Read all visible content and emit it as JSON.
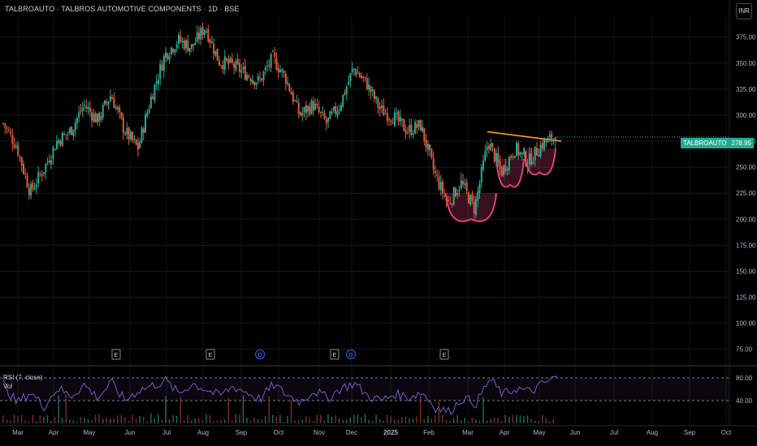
{
  "header": {
    "title": "TALBROAUTO · TALBROS AUTOMOTIVE COMPONENTS · 1D · BSE",
    "currency": "INR"
  },
  "price_tag": {
    "symbol": "TALBROAUTO",
    "value": "278.95"
  },
  "rsi_panel": {
    "label": "RSI (7, close)",
    "vol_label": "Vol",
    "ticks": [
      "80.00",
      "40.00"
    ]
  },
  "colors": {
    "background": "#000000",
    "up": "#22ab94",
    "down": "#e05a3c",
    "rsi_line": "#7e57c2",
    "pattern": "#e0407a",
    "resistance": "#f7a21b",
    "price_tag": "#22ab94"
  },
  "chart_data": {
    "type": "candlestick",
    "symbol": "TALBROAUTO",
    "timeframe": "1D",
    "exchange": "BSE",
    "last_price": 278.95,
    "x_ticks": [
      "Mar",
      "Apr",
      "May",
      "Jun",
      "Jul",
      "Aug",
      "Sep",
      "Oct",
      "Nov",
      "Dec",
      "2025",
      "Feb",
      "Mar",
      "Apr",
      "May",
      "Jun",
      "Jul",
      "Aug",
      "Sep",
      "Oct"
    ],
    "y_ticks": [
      "375.00",
      "350.00",
      "325.00",
      "300.00",
      "275.00",
      "250.00",
      "225.00",
      "200.00",
      "175.00",
      "150.00",
      "125.00",
      "100.00",
      "75.00"
    ],
    "ylim": [
      60,
      395
    ],
    "event_markers": [
      {
        "label": "E",
        "month": "May"
      },
      {
        "label": "E",
        "month": "Aug"
      },
      {
        "label": "D",
        "month": "Sep"
      },
      {
        "label": "E",
        "month": "Nov"
      },
      {
        "label": "D",
        "month": "Dec"
      },
      {
        "label": "E",
        "month": "Feb"
      }
    ],
    "price_path": [
      [
        "Mar",
        292
      ],
      [
        "Mar",
        270
      ],
      [
        "Mar",
        226
      ],
      [
        "Apr",
        248
      ],
      [
        "Apr",
        275
      ],
      [
        "May",
        285
      ],
      [
        "May",
        310
      ],
      [
        "May",
        295
      ],
      [
        "Jun",
        320
      ],
      [
        "Jun",
        285
      ],
      [
        "Jun",
        268
      ],
      [
        "Jul",
        318
      ],
      [
        "Jul",
        358
      ],
      [
        "Jul",
        372
      ],
      [
        "Aug",
        365
      ],
      [
        "Aug",
        385
      ],
      [
        "Aug",
        352
      ],
      [
        "Sep",
        348
      ],
      [
        "Sep",
        340
      ],
      [
        "Sep",
        332
      ],
      [
        "Oct",
        355
      ],
      [
        "Oct",
        335
      ],
      [
        "Oct",
        300
      ],
      [
        "Nov",
        310
      ],
      [
        "Nov",
        292
      ],
      [
        "Dec",
        310
      ],
      [
        "Dec",
        345
      ],
      [
        "Dec",
        330
      ],
      [
        "2025",
        305
      ],
      [
        "2025",
        298
      ],
      [
        "Feb",
        285
      ],
      [
        "Feb",
        290
      ],
      [
        "Feb",
        245
      ],
      [
        "Mar",
        215
      ],
      [
        "Mar",
        235
      ],
      [
        "Mar",
        210
      ],
      [
        "Apr",
        275
      ],
      [
        "Apr",
        245
      ],
      [
        "Apr",
        268
      ],
      [
        "May",
        255
      ],
      [
        "May",
        272
      ],
      [
        "May",
        279
      ]
    ],
    "annotations": [
      {
        "type": "cup",
        "from": "Mar",
        "to": "Apr",
        "low": 200
      },
      {
        "type": "cup",
        "from": "Apr",
        "to": "Apr",
        "low": 233
      },
      {
        "type": "cup",
        "from": "Apr",
        "to": "May",
        "low": 245
      },
      {
        "type": "resistance_line",
        "from_price": 284,
        "to_price": 275
      }
    ],
    "rsi": {
      "period": 7,
      "ylim": [
        0,
        100
      ],
      "levels": [
        80,
        40
      ],
      "path": [
        70,
        35,
        55,
        30,
        62,
        48,
        68,
        45,
        72,
        40,
        58,
        66,
        75,
        52,
        70,
        60,
        48,
        65,
        55,
        42,
        68,
        50,
        38,
        58,
        44,
        62,
        70,
        48,
        40,
        52,
        46,
        55,
        28,
        20,
        45,
        35,
        78,
        50,
        62,
        55,
        70,
        82
      ]
    }
  }
}
